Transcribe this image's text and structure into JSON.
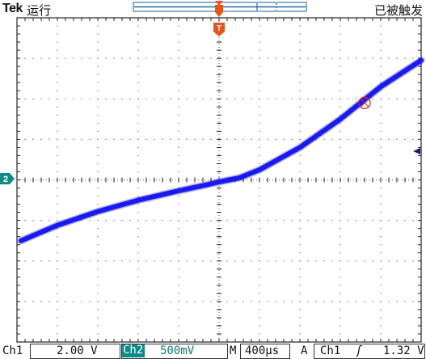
{
  "header": {
    "brand": "Tek",
    "run_state": "运行",
    "trigger_status": "已被触发"
  },
  "markers": {
    "trigger_marker": "T",
    "channel_marker": "2"
  },
  "footer": {
    "ch1_label": "Ch1",
    "ch1_scale": "2.00 V",
    "ch2_label": "Ch2",
    "ch2_scale": "500mV",
    "timebase_label": "M",
    "timebase": "400µs",
    "trigger_label": "A",
    "trigger_source": "Ch1",
    "trigger_slope_icon": "rising-edge-icon",
    "trigger_level": "1.32 V"
  },
  "colors": {
    "trace": "#1a1aee",
    "trigger_marker": "#e8541a",
    "channel_marker": "#0f8a8a",
    "grid": "#222222"
  },
  "chart_data": {
    "type": "scatter",
    "mode": "XY",
    "grid": true,
    "x_divisions": 10,
    "y_divisions": 8,
    "x_range": [
      -5,
      5
    ],
    "y_range": [
      -4,
      4
    ],
    "xlabel": "",
    "ylabel": "",
    "series": [
      {
        "x": [
          -4.9,
          -4.0,
          -3.0,
          -2.0,
          -1.0,
          -0.3,
          0.0,
          0.5,
          1.0,
          2.0,
          3.0,
          4.0,
          5.0
        ],
        "y": [
          -1.5,
          -1.12,
          -0.78,
          -0.5,
          -0.27,
          -0.12,
          -0.05,
          0.05,
          0.25,
          0.8,
          1.5,
          2.3,
          2.95
        ]
      }
    ],
    "cursor_point": {
      "x": 3.6,
      "y": 1.9
    }
  }
}
